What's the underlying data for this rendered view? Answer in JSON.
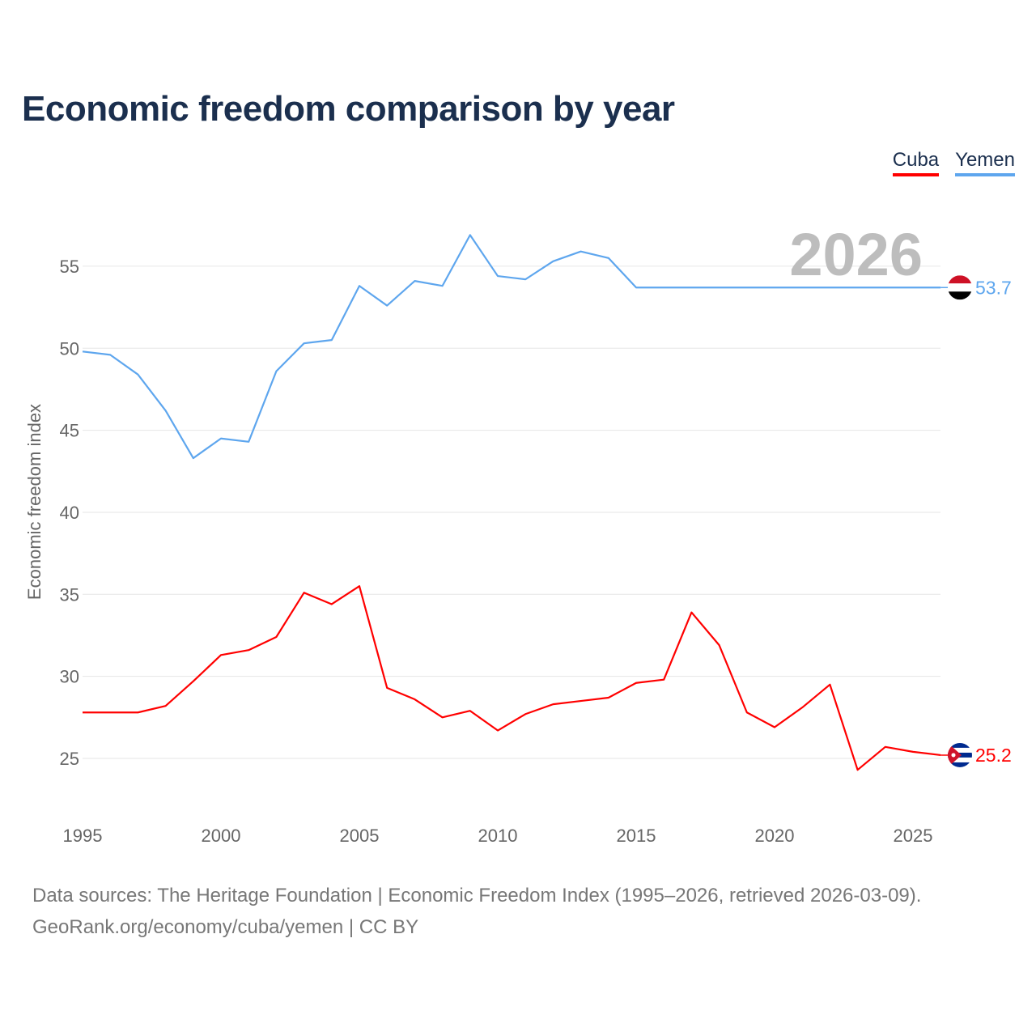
{
  "chart_data": {
    "type": "line",
    "title": "Economic freedom comparison by year",
    "xlabel": "",
    "ylabel": "Economic freedom index",
    "xlim": [
      1995,
      2026
    ],
    "ylim": [
      21.5,
      58
    ],
    "yticks": [
      25,
      30,
      35,
      40,
      45,
      50,
      55
    ],
    "xticks": [
      1995,
      2000,
      2005,
      2010,
      2015,
      2020,
      2025
    ],
    "grid": true,
    "legend_position": "top-right",
    "year_label": "2026",
    "x": [
      1995,
      1996,
      1997,
      1998,
      1999,
      2000,
      2001,
      2002,
      2003,
      2004,
      2005,
      2006,
      2007,
      2008,
      2009,
      2010,
      2011,
      2012,
      2013,
      2014,
      2015,
      2016,
      2017,
      2018,
      2019,
      2020,
      2021,
      2022,
      2023,
      2024,
      2025,
      2026
    ],
    "series": [
      {
        "name": "Cuba",
        "color": "#ff0000",
        "end_label": "25.2",
        "values": [
          27.8,
          27.8,
          27.8,
          28.2,
          29.7,
          31.3,
          31.6,
          32.4,
          35.1,
          34.4,
          35.5,
          29.3,
          28.6,
          27.5,
          27.9,
          26.7,
          27.7,
          28.3,
          28.5,
          28.7,
          29.6,
          29.8,
          33.9,
          31.9,
          27.8,
          26.9,
          28.1,
          29.5,
          24.3,
          25.7,
          25.4,
          25.2
        ]
      },
      {
        "name": "Yemen",
        "color": "#5ea6ee",
        "end_label": "53.7",
        "values": [
          49.8,
          49.6,
          48.4,
          46.2,
          43.3,
          44.5,
          44.3,
          48.6,
          50.3,
          50.5,
          53.8,
          52.6,
          54.1,
          53.8,
          56.9,
          54.4,
          54.2,
          55.3,
          55.9,
          55.5,
          53.7,
          53.7,
          53.7,
          53.7,
          53.7,
          53.7,
          53.7,
          53.7,
          53.7,
          53.7,
          53.7,
          53.7
        ]
      }
    ]
  },
  "footer": {
    "line1": "Data sources: The Heritage Foundation | Economic Freedom Index (1995–2026, retrieved 2026-03-09).",
    "line2": "GeoRank.org/economy/cuba/yemen | CC BY"
  }
}
